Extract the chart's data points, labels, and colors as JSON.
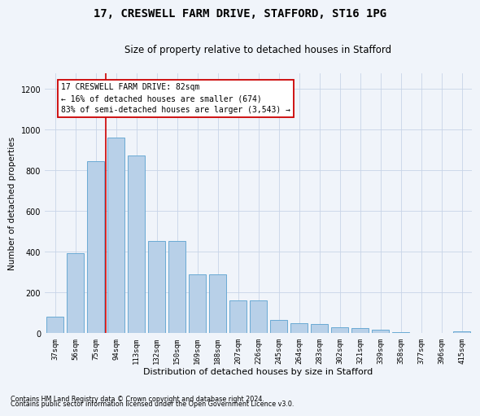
{
  "title": "17, CRESWELL FARM DRIVE, STAFFORD, ST16 1PG",
  "subtitle": "Size of property relative to detached houses in Stafford",
  "xlabel": "Distribution of detached houses by size in Stafford",
  "ylabel": "Number of detached properties",
  "footnote1": "Contains HM Land Registry data © Crown copyright and database right 2024.",
  "footnote2": "Contains public sector information licensed under the Open Government Licence v3.0.",
  "categories": [
    "37sqm",
    "56sqm",
    "75sqm",
    "94sqm",
    "113sqm",
    "132sqm",
    "150sqm",
    "169sqm",
    "188sqm",
    "207sqm",
    "226sqm",
    "245sqm",
    "264sqm",
    "283sqm",
    "302sqm",
    "321sqm",
    "339sqm",
    "358sqm",
    "377sqm",
    "396sqm",
    "415sqm"
  ],
  "values": [
    80,
    395,
    845,
    960,
    875,
    455,
    455,
    290,
    290,
    160,
    160,
    65,
    50,
    45,
    30,
    25,
    18,
    5,
    0,
    0,
    10
  ],
  "bar_color": "#b8d0e8",
  "bar_edge_color": "#6aaad4",
  "property_line_color": "#cc0000",
  "annotation_text": "17 CRESWELL FARM DRIVE: 82sqm\n← 16% of detached houses are smaller (674)\n83% of semi-detached houses are larger (3,543) →",
  "annotation_box_edge_color": "#cc0000",
  "ylim_max": 1280,
  "yticks": [
    0,
    200,
    400,
    600,
    800,
    1000,
    1200
  ],
  "background_color": "#f0f4fa",
  "grid_color": "#c8d4e8",
  "title_fontsize": 10,
  "subtitle_fontsize": 8.5,
  "xlabel_fontsize": 8,
  "ylabel_fontsize": 7.5,
  "tick_fontsize": 6.5,
  "annot_fontsize": 7,
  "footnote_fontsize": 5.8
}
